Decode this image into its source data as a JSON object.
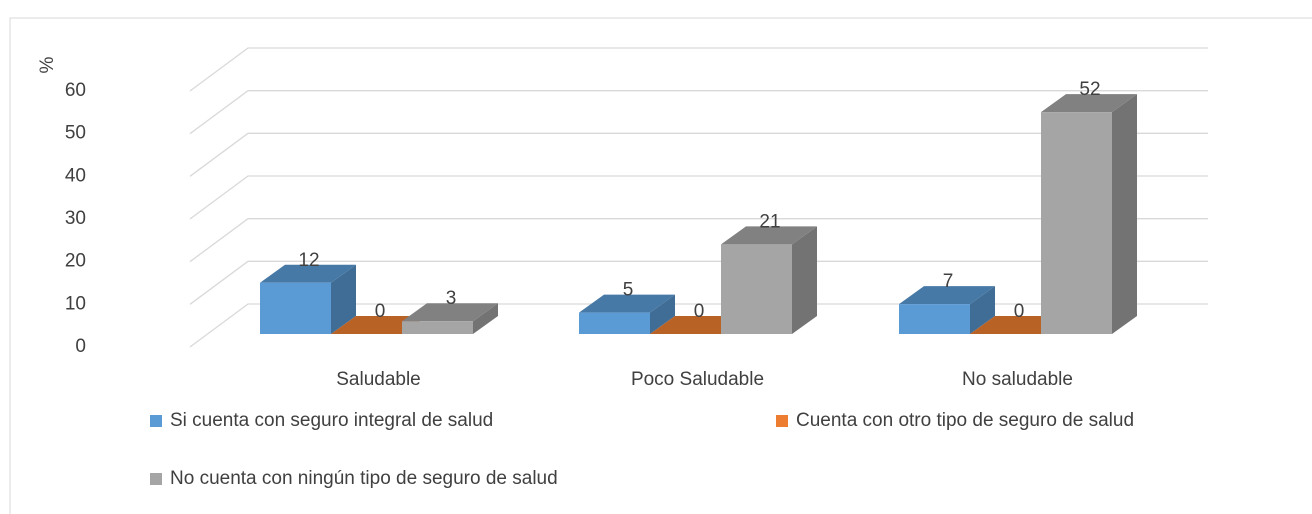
{
  "chart_data": {
    "type": "bar3d",
    "y_label": "%",
    "categories": [
      "Saludable",
      "Poco Saludable",
      "No saludable"
    ],
    "series": [
      {
        "name": "Si cuenta con seguro integral de salud",
        "color": "#5b9bd5",
        "values": [
          12,
          5,
          7
        ]
      },
      {
        "name": "Cuenta con otro tipo de seguro de salud",
        "color": "#ed7d31",
        "values": [
          0,
          0,
          0
        ]
      },
      {
        "name": "No cuenta con ningún tipo de seguro de salud",
        "color": "#a5a5a5",
        "values": [
          3,
          21,
          52
        ]
      }
    ],
    "ylim": [
      0,
      70
    ],
    "yticks": [
      0,
      10,
      20,
      30,
      40,
      50,
      60
    ],
    "grid": true,
    "legend": "bottom"
  }
}
